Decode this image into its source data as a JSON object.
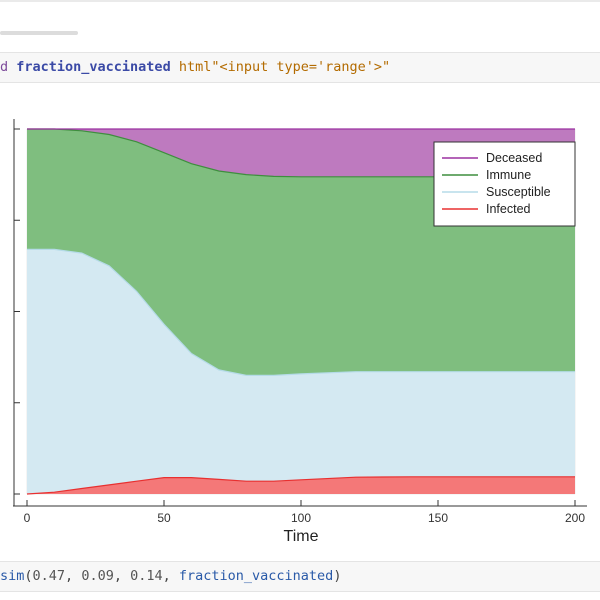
{
  "top_cell": {
    "prefix": "d ",
    "variable": "fraction_vaccinated",
    "macro_string": " html\"<input type='range'>\""
  },
  "bottom_cell": {
    "func": "sim",
    "open": "(",
    "args": [
      "0.47",
      "0.09",
      "0.14"
    ],
    "sep": ", ",
    "last_arg": "fraction_vaccinated",
    "close": ")"
  },
  "chart_data": {
    "type": "area",
    "xlabel": "Time",
    "xlim": [
      0,
      200
    ],
    "ylim": [
      0,
      1
    ],
    "xticks": [
      "0",
      "50",
      "100",
      "150",
      "200"
    ],
    "grid": true,
    "legend_position": "top-right",
    "x": [
      0,
      10,
      20,
      30,
      40,
      50,
      60,
      70,
      80,
      90,
      100,
      120,
      140,
      160,
      180,
      200
    ],
    "series": [
      {
        "name": "Deceased",
        "color": "#9b30a0",
        "fill": "#be7abf",
        "values": [
          0.0,
          0.0,
          0.005,
          0.015,
          0.035,
          0.065,
          0.095,
          0.115,
          0.125,
          0.13,
          0.131,
          0.131,
          0.131,
          0.131,
          0.131,
          0.131
        ]
      },
      {
        "name": "Immune",
        "color": "#3e8e3e",
        "fill": "#7fbe7f",
        "values": [
          0.33,
          0.33,
          0.335,
          0.36,
          0.41,
          0.47,
          0.52,
          0.545,
          0.55,
          0.545,
          0.54,
          0.534,
          0.534,
          0.534,
          0.534,
          0.534
        ]
      },
      {
        "name": "Susceptible",
        "color": "#b5dbe8",
        "fill": "#d4e9f2",
        "values": [
          0.67,
          0.665,
          0.645,
          0.6,
          0.52,
          0.42,
          0.34,
          0.3,
          0.29,
          0.29,
          0.29,
          0.289,
          0.288,
          0.288,
          0.288,
          0.288
        ]
      },
      {
        "name": "Infected",
        "color": "#e83030",
        "fill": "#f47878",
        "values": [
          0.0,
          0.005,
          0.015,
          0.025,
          0.035,
          0.045,
          0.045,
          0.04,
          0.035,
          0.035,
          0.039,
          0.046,
          0.047,
          0.047,
          0.047,
          0.047
        ]
      }
    ],
    "stack_order": [
      "Infected",
      "Susceptible",
      "Immune",
      "Deceased"
    ]
  }
}
